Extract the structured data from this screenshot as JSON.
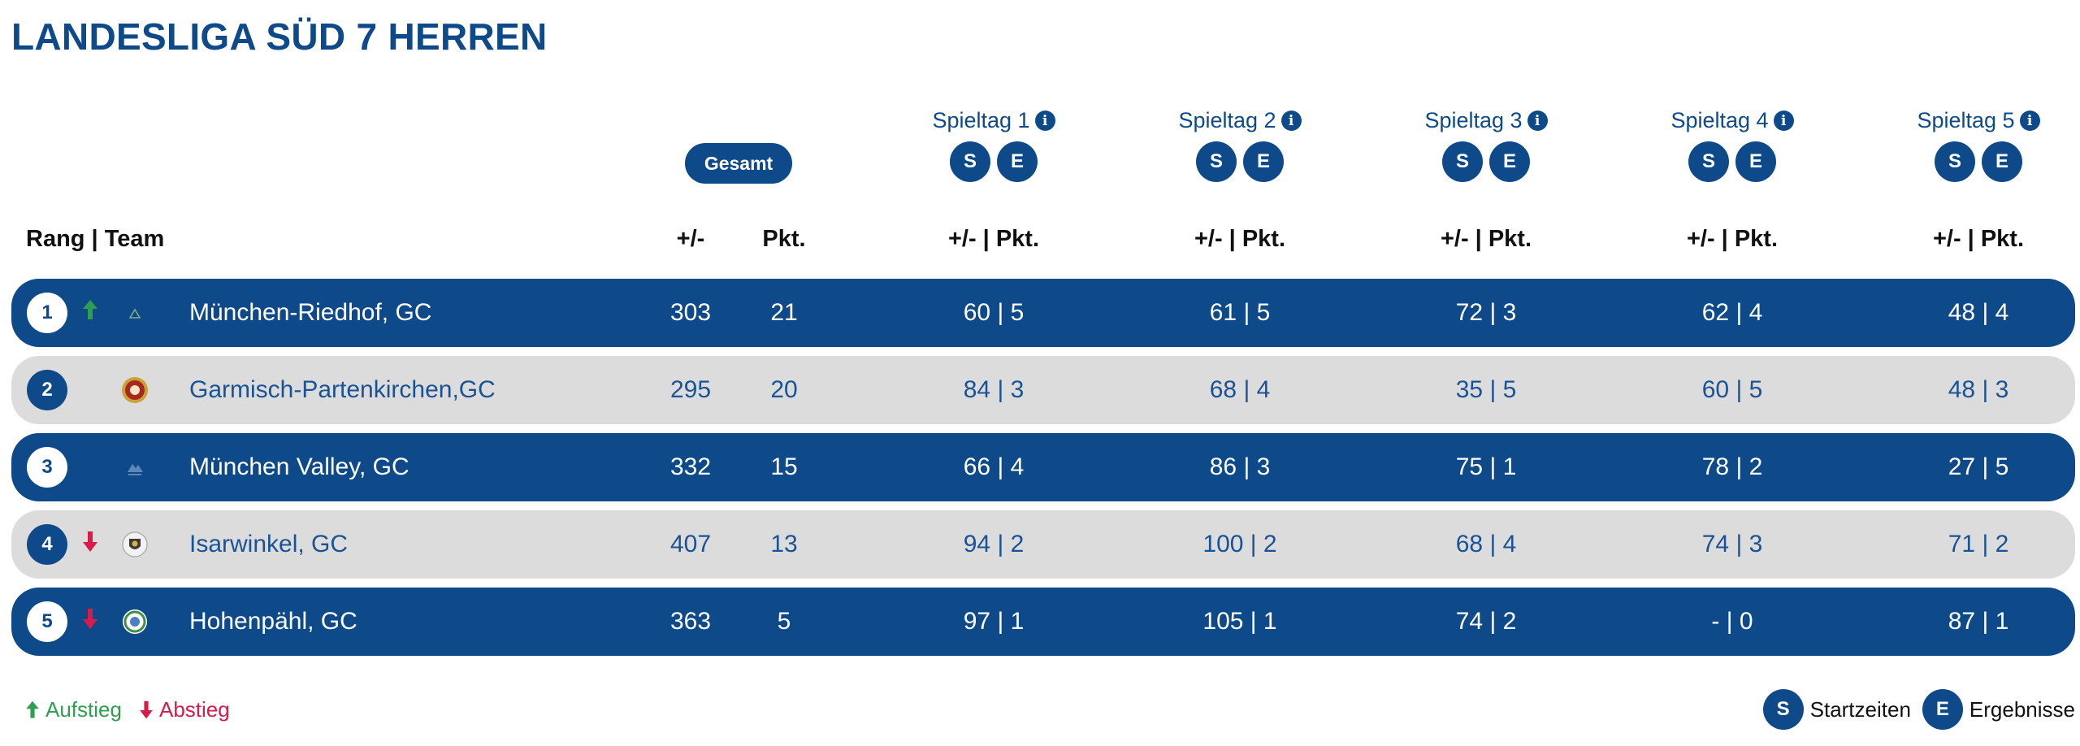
{
  "title": "LANDESLIGA SÜD 7 HERREN",
  "buttons": {
    "gesamt": "Gesamt",
    "s": "S",
    "e": "E"
  },
  "spieltage": [
    {
      "label": "Spieltag 1"
    },
    {
      "label": "Spieltag 2"
    },
    {
      "label": "Spieltag 3"
    },
    {
      "label": "Spieltag 4"
    },
    {
      "label": "Spieltag 5"
    }
  ],
  "headers": {
    "rang_team": "Rang | Team",
    "diff": "+/-",
    "pkt": "Pkt.",
    "spieltag": "+/- | Pkt."
  },
  "rows": [
    {
      "rank": "1",
      "trend": "up",
      "team": "München-Riedhof, GC",
      "diff": "303",
      "pkt": "21",
      "s1": "60 | 5",
      "s2": "61 | 5",
      "s3": "72 | 3",
      "s4": "62 | 4",
      "s5": "48 | 4"
    },
    {
      "rank": "2",
      "trend": "none",
      "team": "Garmisch-Partenkirchen,GC",
      "diff": "295",
      "pkt": "20",
      "s1": "84 | 3",
      "s2": "68 | 4",
      "s3": "35 | 5",
      "s4": "60 | 5",
      "s5": "48 | 3"
    },
    {
      "rank": "3",
      "trend": "none",
      "team": "München Valley, GC",
      "diff": "332",
      "pkt": "15",
      "s1": "66 | 4",
      "s2": "86 | 3",
      "s3": "75 | 1",
      "s4": "78 | 2",
      "s5": "27 | 5"
    },
    {
      "rank": "4",
      "trend": "down",
      "team": "Isarwinkel, GC",
      "diff": "407",
      "pkt": "13",
      "s1": "94 | 2",
      "s2": "100 | 2",
      "s3": "68 | 4",
      "s4": "74 | 3",
      "s5": "71 | 2"
    },
    {
      "rank": "5",
      "trend": "down",
      "team": "Hohenpähl, GC",
      "diff": "363",
      "pkt": "5",
      "s1": "97 | 1",
      "s2": "105 | 1",
      "s3": "74 | 2",
      "s4": "- | 0",
      "s5": "87 | 1"
    }
  ],
  "legend": {
    "aufstieg": "Aufstieg",
    "abstieg": "Abstieg",
    "startzeiten": "Startzeiten",
    "ergebnisse": "Ergebnisse"
  },
  "colors": {
    "primary": "#0e4a8a",
    "row_alt": "#dcdcdc",
    "up": "#2e9e4f",
    "down": "#d81b4a"
  }
}
